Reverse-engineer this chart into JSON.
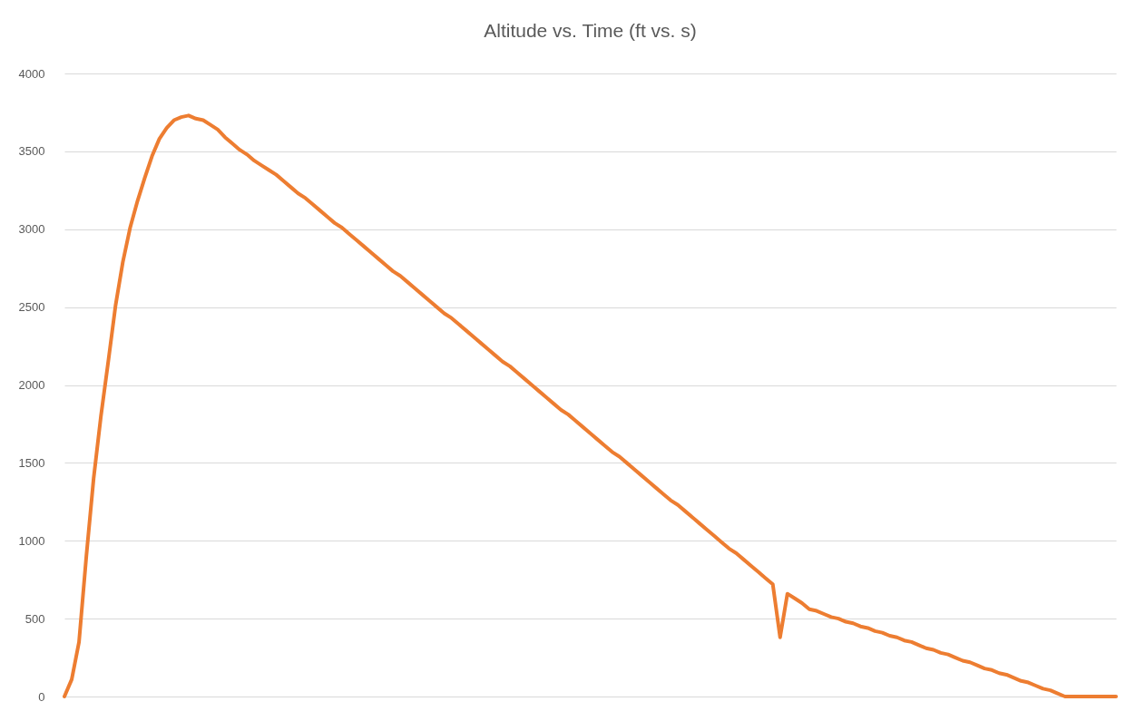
{
  "chart_data": {
    "type": "line",
    "title": "Altitude vs. Time (ft vs. s)",
    "categories": [
      null,
      null,
      null,
      null,
      null,
      null,
      null,
      null,
      null,
      null,
      null,
      null,
      null,
      null,
      null,
      null,
      null,
      null,
      null,
      null,
      null,
      null,
      null,
      null,
      null,
      null,
      null,
      null,
      null,
      null,
      null,
      null,
      null,
      null,
      null,
      null,
      null,
      null,
      null,
      null,
      null,
      null,
      null,
      null,
      null,
      null,
      null,
      null,
      null,
      null,
      null,
      null,
      null,
      null,
      null,
      null,
      null,
      null,
      null,
      null,
      null,
      null,
      null,
      null,
      null,
      null,
      null,
      null,
      null,
      null,
      null,
      null,
      null,
      null,
      null,
      null,
      null,
      null,
      null,
      null,
      null,
      null,
      null,
      null,
      null,
      null,
      null,
      null,
      null,
      null,
      null,
      null,
      null,
      null,
      null,
      null,
      null,
      null,
      null,
      null,
      null,
      null,
      null,
      null,
      null,
      null,
      null,
      null,
      null,
      null,
      null,
      null,
      null,
      null,
      null,
      null,
      null,
      null,
      null,
      null,
      null,
      null,
      null,
      null,
      null,
      null,
      null,
      null,
      null,
      null,
      null,
      null,
      null,
      null,
      null,
      null,
      null,
      null,
      null,
      null,
      null,
      null,
      null,
      null,
      null
    ],
    "series": [
      {
        "color": "#ed7d31",
        "values": [
          0,
          110,
          350,
          900,
          1400,
          1800,
          2150,
          2510,
          2790,
          3010,
          3180,
          3330,
          3470,
          3580,
          3650,
          3700,
          3720,
          3730,
          3710,
          3700,
          3670,
          3640,
          3590,
          3550,
          3510,
          3480,
          3440,
          3410,
          3380,
          3350,
          3310,
          3270,
          3230,
          3200,
          3160,
          3120,
          3080,
          3040,
          3010,
          2970,
          2930,
          2890,
          2850,
          2810,
          2770,
          2730,
          2700,
          2660,
          2620,
          2580,
          2540,
          2500,
          2460,
          2430,
          2390,
          2350,
          2310,
          2270,
          2230,
          2190,
          2150,
          2120,
          2080,
          2040,
          2000,
          1960,
          1920,
          1880,
          1840,
          1810,
          1770,
          1730,
          1690,
          1650,
          1610,
          1570,
          1540,
          1500,
          1460,
          1420,
          1380,
          1340,
          1300,
          1260,
          1230,
          1190,
          1150,
          1110,
          1070,
          1030,
          990,
          950,
          920,
          880,
          840,
          800,
          760,
          720,
          380,
          660,
          630,
          600,
          560,
          550,
          530,
          510,
          500,
          480,
          470,
          450,
          440,
          420,
          410,
          390,
          380,
          360,
          350,
          330,
          310,
          300,
          280,
          270,
          250,
          230,
          220,
          200,
          180,
          170,
          150,
          140,
          120,
          100,
          90,
          70,
          50,
          40,
          20,
          0,
          0,
          0,
          0,
          0,
          0,
          0,
          0
        ]
      }
    ],
    "ylim": [
      0,
      4000
    ],
    "yticks": [
      0,
      500,
      1000,
      1500,
      2000,
      2500,
      3000,
      3500,
      4000
    ],
    "grid": "y",
    "line_style": "solid",
    "marker": "none"
  }
}
